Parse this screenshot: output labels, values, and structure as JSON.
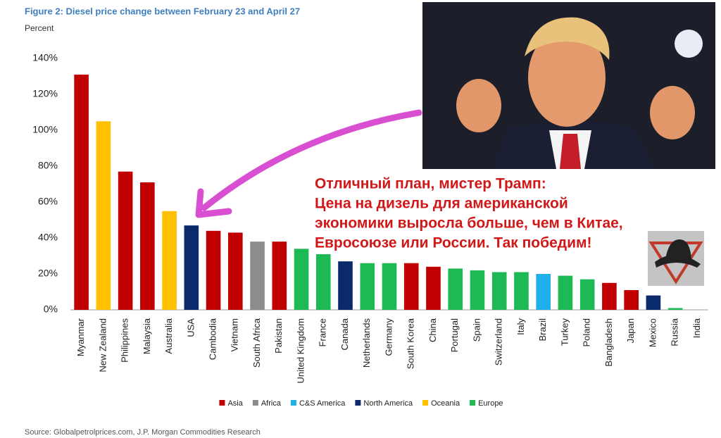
{
  "chart_data": {
    "type": "bar",
    "title": "Figure 2: Diesel price change between February 23 and April 27",
    "subtitle": "Percent",
    "source": "Source: Globalpetrolprices.com, J.P. Morgan Commodities Research",
    "categories": [
      "Myanmar",
      "New Zealand",
      "Philippines",
      "Malaysia",
      "Australia",
      "USA",
      "Cambodia",
      "Vietnam",
      "South Africa",
      "Pakistan",
      "United Kingdom",
      "France",
      "Canada",
      "Netherlands",
      "Germany",
      "South Korea",
      "China",
      "Portugal",
      "Spain",
      "Switzerland",
      "Italy",
      "Brazil",
      "Turkey",
      "Poland",
      "Bangladesh",
      "Japan",
      "Mexico",
      "Russia",
      "India"
    ],
    "series": [
      {
        "name": "Asia",
        "color": "#c00000",
        "values": [
          131,
          null,
          77,
          71,
          null,
          null,
          44,
          43,
          null,
          38,
          null,
          null,
          null,
          null,
          null,
          26,
          24,
          null,
          null,
          null,
          null,
          null,
          null,
          null,
          15,
          11,
          null,
          null,
          0
        ]
      },
      {
        "name": "Africa",
        "color": "#8c8c8c",
        "values": [
          null,
          null,
          null,
          null,
          null,
          null,
          null,
          null,
          38,
          null,
          null,
          null,
          null,
          null,
          null,
          null,
          null,
          null,
          null,
          null,
          null,
          null,
          null,
          null,
          null,
          null,
          null,
          null,
          null
        ]
      },
      {
        "name": "C&S America",
        "color": "#1fb0ea",
        "values": [
          null,
          null,
          null,
          null,
          null,
          null,
          null,
          null,
          null,
          null,
          null,
          null,
          null,
          null,
          null,
          null,
          null,
          null,
          null,
          null,
          null,
          20,
          null,
          null,
          null,
          null,
          null,
          null,
          null
        ]
      },
      {
        "name": "North America",
        "color": "#0a2a6b",
        "values": [
          null,
          null,
          null,
          null,
          null,
          47,
          null,
          null,
          null,
          null,
          null,
          null,
          27,
          null,
          null,
          null,
          null,
          null,
          null,
          null,
          null,
          null,
          null,
          null,
          null,
          null,
          8,
          null,
          null
        ]
      },
      {
        "name": "Oceania",
        "color": "#ffc000",
        "values": [
          null,
          105,
          null,
          null,
          55,
          null,
          null,
          null,
          null,
          null,
          null,
          null,
          null,
          null,
          null,
          null,
          null,
          null,
          null,
          null,
          null,
          null,
          null,
          null,
          null,
          null,
          null,
          null,
          null
        ]
      },
      {
        "name": "Europe",
        "color": "#1db954",
        "values": [
          null,
          null,
          null,
          null,
          null,
          null,
          null,
          null,
          null,
          null,
          34,
          31,
          null,
          26,
          26,
          null,
          null,
          23,
          22,
          21,
          21,
          null,
          19,
          17,
          null,
          null,
          null,
          1,
          null
        ]
      }
    ],
    "ylim": [
      0,
      140
    ],
    "yticks": [
      {
        "value": 0,
        "label": "0%"
      },
      {
        "value": 20,
        "label": "20%"
      },
      {
        "value": 40,
        "label": "40%"
      },
      {
        "value": 60,
        "label": "60%"
      },
      {
        "value": 80,
        "label": "80%"
      },
      {
        "value": 100,
        "label": "100%"
      },
      {
        "value": 120,
        "label": "120%"
      },
      {
        "value": 140,
        "label": "140%"
      }
    ],
    "grid": false
  },
  "caption": {
    "lines": [
      "Отличный план, мистер Трамп:",
      "Цена на дизель для американской",
      "экономики выросла больше, чем в Китае,",
      "Евросоюзе или России. Так победим!"
    ]
  }
}
